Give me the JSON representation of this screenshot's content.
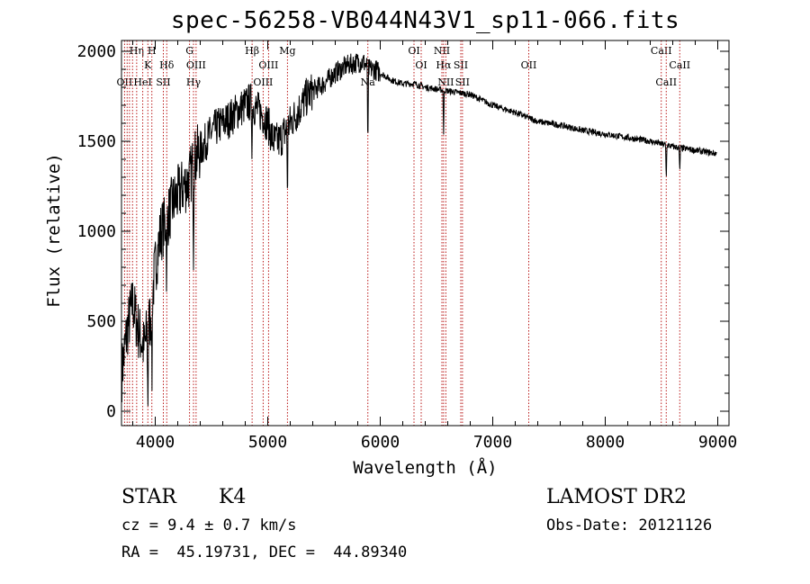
{
  "chart_data": {
    "type": "line",
    "title": "spec-56258-VB044N43V1_sp11-066.fits",
    "xlabel": "Wavelength (Å)",
    "ylabel": "Flux (relative)",
    "xlim": [
      3700,
      9100
    ],
    "ylim": [
      -80,
      2060
    ],
    "xticks": [
      4000,
      5000,
      6000,
      7000,
      8000,
      9000
    ],
    "yticks": [
      0,
      500,
      1000,
      1500,
      2000
    ],
    "series": [
      {
        "name": "spectrum",
        "x": [
          3700,
          3750,
          3800,
          3850,
          3900,
          3950,
          4000,
          4050,
          4100,
          4150,
          4200,
          4250,
          4300,
          4350,
          4400,
          4450,
          4500,
          4550,
          4600,
          4650,
          4700,
          4750,
          4800,
          4850,
          4900,
          4950,
          5000,
          5050,
          5100,
          5150,
          5200,
          5250,
          5300,
          5350,
          5400,
          5450,
          5500,
          5550,
          5600,
          5650,
          5700,
          5750,
          5800,
          5850,
          5900,
          5950,
          6000,
          6100,
          6200,
          6300,
          6400,
          6500,
          6600,
          6700,
          6800,
          6900,
          7000,
          7200,
          7400,
          7600,
          7800,
          8000,
          8200,
          8400,
          8600,
          8800,
          9000
        ],
        "y": [
          200,
          450,
          600,
          450,
          350,
          500,
          800,
          1000,
          1050,
          1150,
          1200,
          1250,
          1280,
          1400,
          1450,
          1500,
          1550,
          1580,
          1600,
          1620,
          1650,
          1680,
          1700,
          1720,
          1680,
          1650,
          1600,
          1500,
          1500,
          1550,
          1600,
          1650,
          1700,
          1750,
          1780,
          1800,
          1820,
          1850,
          1880,
          1900,
          1920,
          1930,
          1940,
          1940,
          1900,
          1900,
          1880,
          1840,
          1820,
          1820,
          1800,
          1790,
          1780,
          1770,
          1760,
          1730,
          1700,
          1660,
          1610,
          1590,
          1560,
          1540,
          1520,
          1500,
          1470,
          1450,
          1430
        ]
      }
    ],
    "features": [
      {
        "x": 5890,
        "depth": 500
      },
      {
        "x": 5175,
        "depth": 400
      },
      {
        "x": 4860,
        "depth": 250
      },
      {
        "x": 4340,
        "depth": 450
      },
      {
        "x": 4102,
        "depth": 350
      },
      {
        "x": 3970,
        "depth": 500
      },
      {
        "x": 3934,
        "depth": 450
      },
      {
        "x": 8542,
        "depth": 200
      },
      {
        "x": 8662,
        "depth": 150
      },
      {
        "x": 6563,
        "depth": 250
      }
    ],
    "lines": [
      {
        "x": 3727,
        "label": "OII",
        "row": 3
      },
      {
        "x": 3750,
        "label": "",
        "row": 0
      },
      {
        "x": 3771,
        "label": "",
        "row": 0
      },
      {
        "x": 3798,
        "label": "",
        "row": 0
      },
      {
        "x": 3835,
        "label": "Hη",
        "row": 1
      },
      {
        "x": 3889,
        "label": "HeI",
        "row": 3
      },
      {
        "x": 3934,
        "label": "K",
        "row": 2
      },
      {
        "x": 3970,
        "label": "H",
        "row": 1
      },
      {
        "x": 4072,
        "label": "SII",
        "row": 3
      },
      {
        "x": 4102,
        "label": "Hδ",
        "row": 2
      },
      {
        "x": 4305,
        "label": "G",
        "row": 1
      },
      {
        "x": 4340,
        "label": "Hγ",
        "row": 3
      },
      {
        "x": 4363,
        "label": "OIII",
        "row": 2
      },
      {
        "x": 4861,
        "label": "Hβ",
        "row": 1
      },
      {
        "x": 4959,
        "label": "OIII",
        "row": 3
      },
      {
        "x": 5007,
        "label": "OIII",
        "row": 2
      },
      {
        "x": 5175,
        "label": "Mg",
        "row": 1
      },
      {
        "x": 5890,
        "label": "Na",
        "row": 3
      },
      {
        "x": 6300,
        "label": "OI",
        "row": 1
      },
      {
        "x": 6364,
        "label": "OI",
        "row": 2
      },
      {
        "x": 6548,
        "label": "NII",
        "row": 1
      },
      {
        "x": 6563,
        "label": "Hα",
        "row": 2
      },
      {
        "x": 6583,
        "label": "NII",
        "row": 3
      },
      {
        "x": 6716,
        "label": "SII",
        "row": 2
      },
      {
        "x": 6731,
        "label": "SII",
        "row": 3
      },
      {
        "x": 7320,
        "label": "OII",
        "row": 2
      },
      {
        "x": 8498,
        "label": "CaII",
        "row": 1
      },
      {
        "x": 8542,
        "label": "CaII",
        "row": 3
      },
      {
        "x": 8662,
        "label": "CaII",
        "row": 2
      }
    ]
  },
  "info": {
    "class": "STAR",
    "subclass": "K4",
    "survey": "LAMOST DR2",
    "cz": "cz = 9.4 ± 0.7 km/s",
    "obs_date": "Obs-Date: 20121126",
    "coords": "RA =  45.19731, DEC =  44.89340"
  }
}
